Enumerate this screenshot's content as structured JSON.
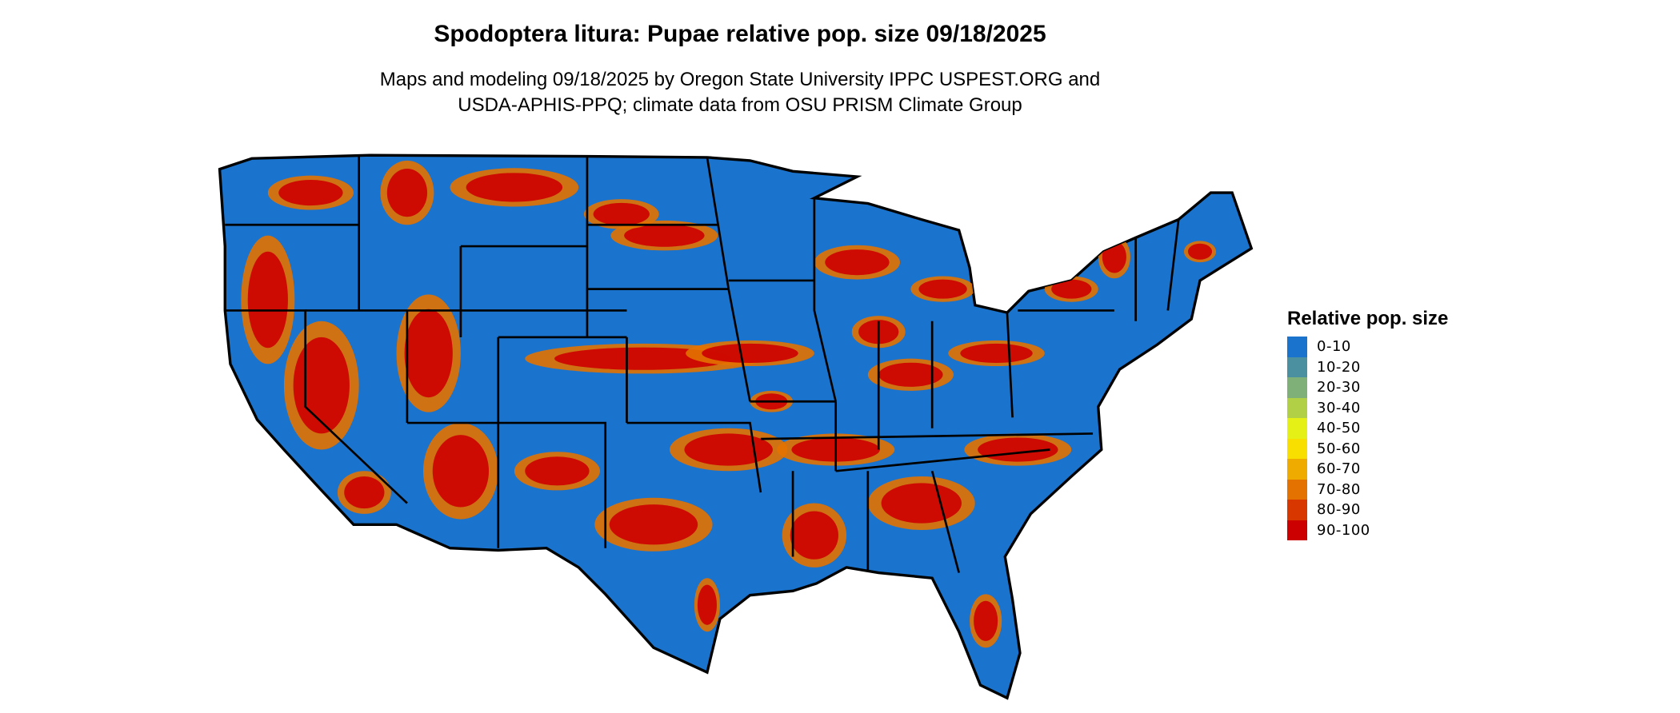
{
  "title": "Spodoptera litura: Pupae relative pop. size 09/18/2025",
  "subtitle_line1": "Maps and modeling 09/18/2025 by Oregon State University IPPC USPEST.ORG and",
  "subtitle_line2": "USDA-APHIS-PPQ; climate data from OSU PRISM Climate Group",
  "map": {
    "region": "Contiguous United States",
    "base_color": "#1a73cc",
    "hotspot_color": "#cc0000"
  },
  "legend": {
    "title": "Relative pop. size",
    "items": [
      {
        "label": "0-10",
        "color": "#1a73cc"
      },
      {
        "label": "10-20",
        "color": "#4a90a0"
      },
      {
        "label": "20-30",
        "color": "#7fb077"
      },
      {
        "label": "30-40",
        "color": "#b1d046"
      },
      {
        "label": "40-50",
        "color": "#e5f016"
      },
      {
        "label": "50-60",
        "color": "#f8df00"
      },
      {
        "label": "60-70",
        "color": "#efab00"
      },
      {
        "label": "70-80",
        "color": "#e37200"
      },
      {
        "label": "80-90",
        "color": "#d83800"
      },
      {
        "label": "90-100",
        "color": "#cc0000"
      }
    ]
  }
}
